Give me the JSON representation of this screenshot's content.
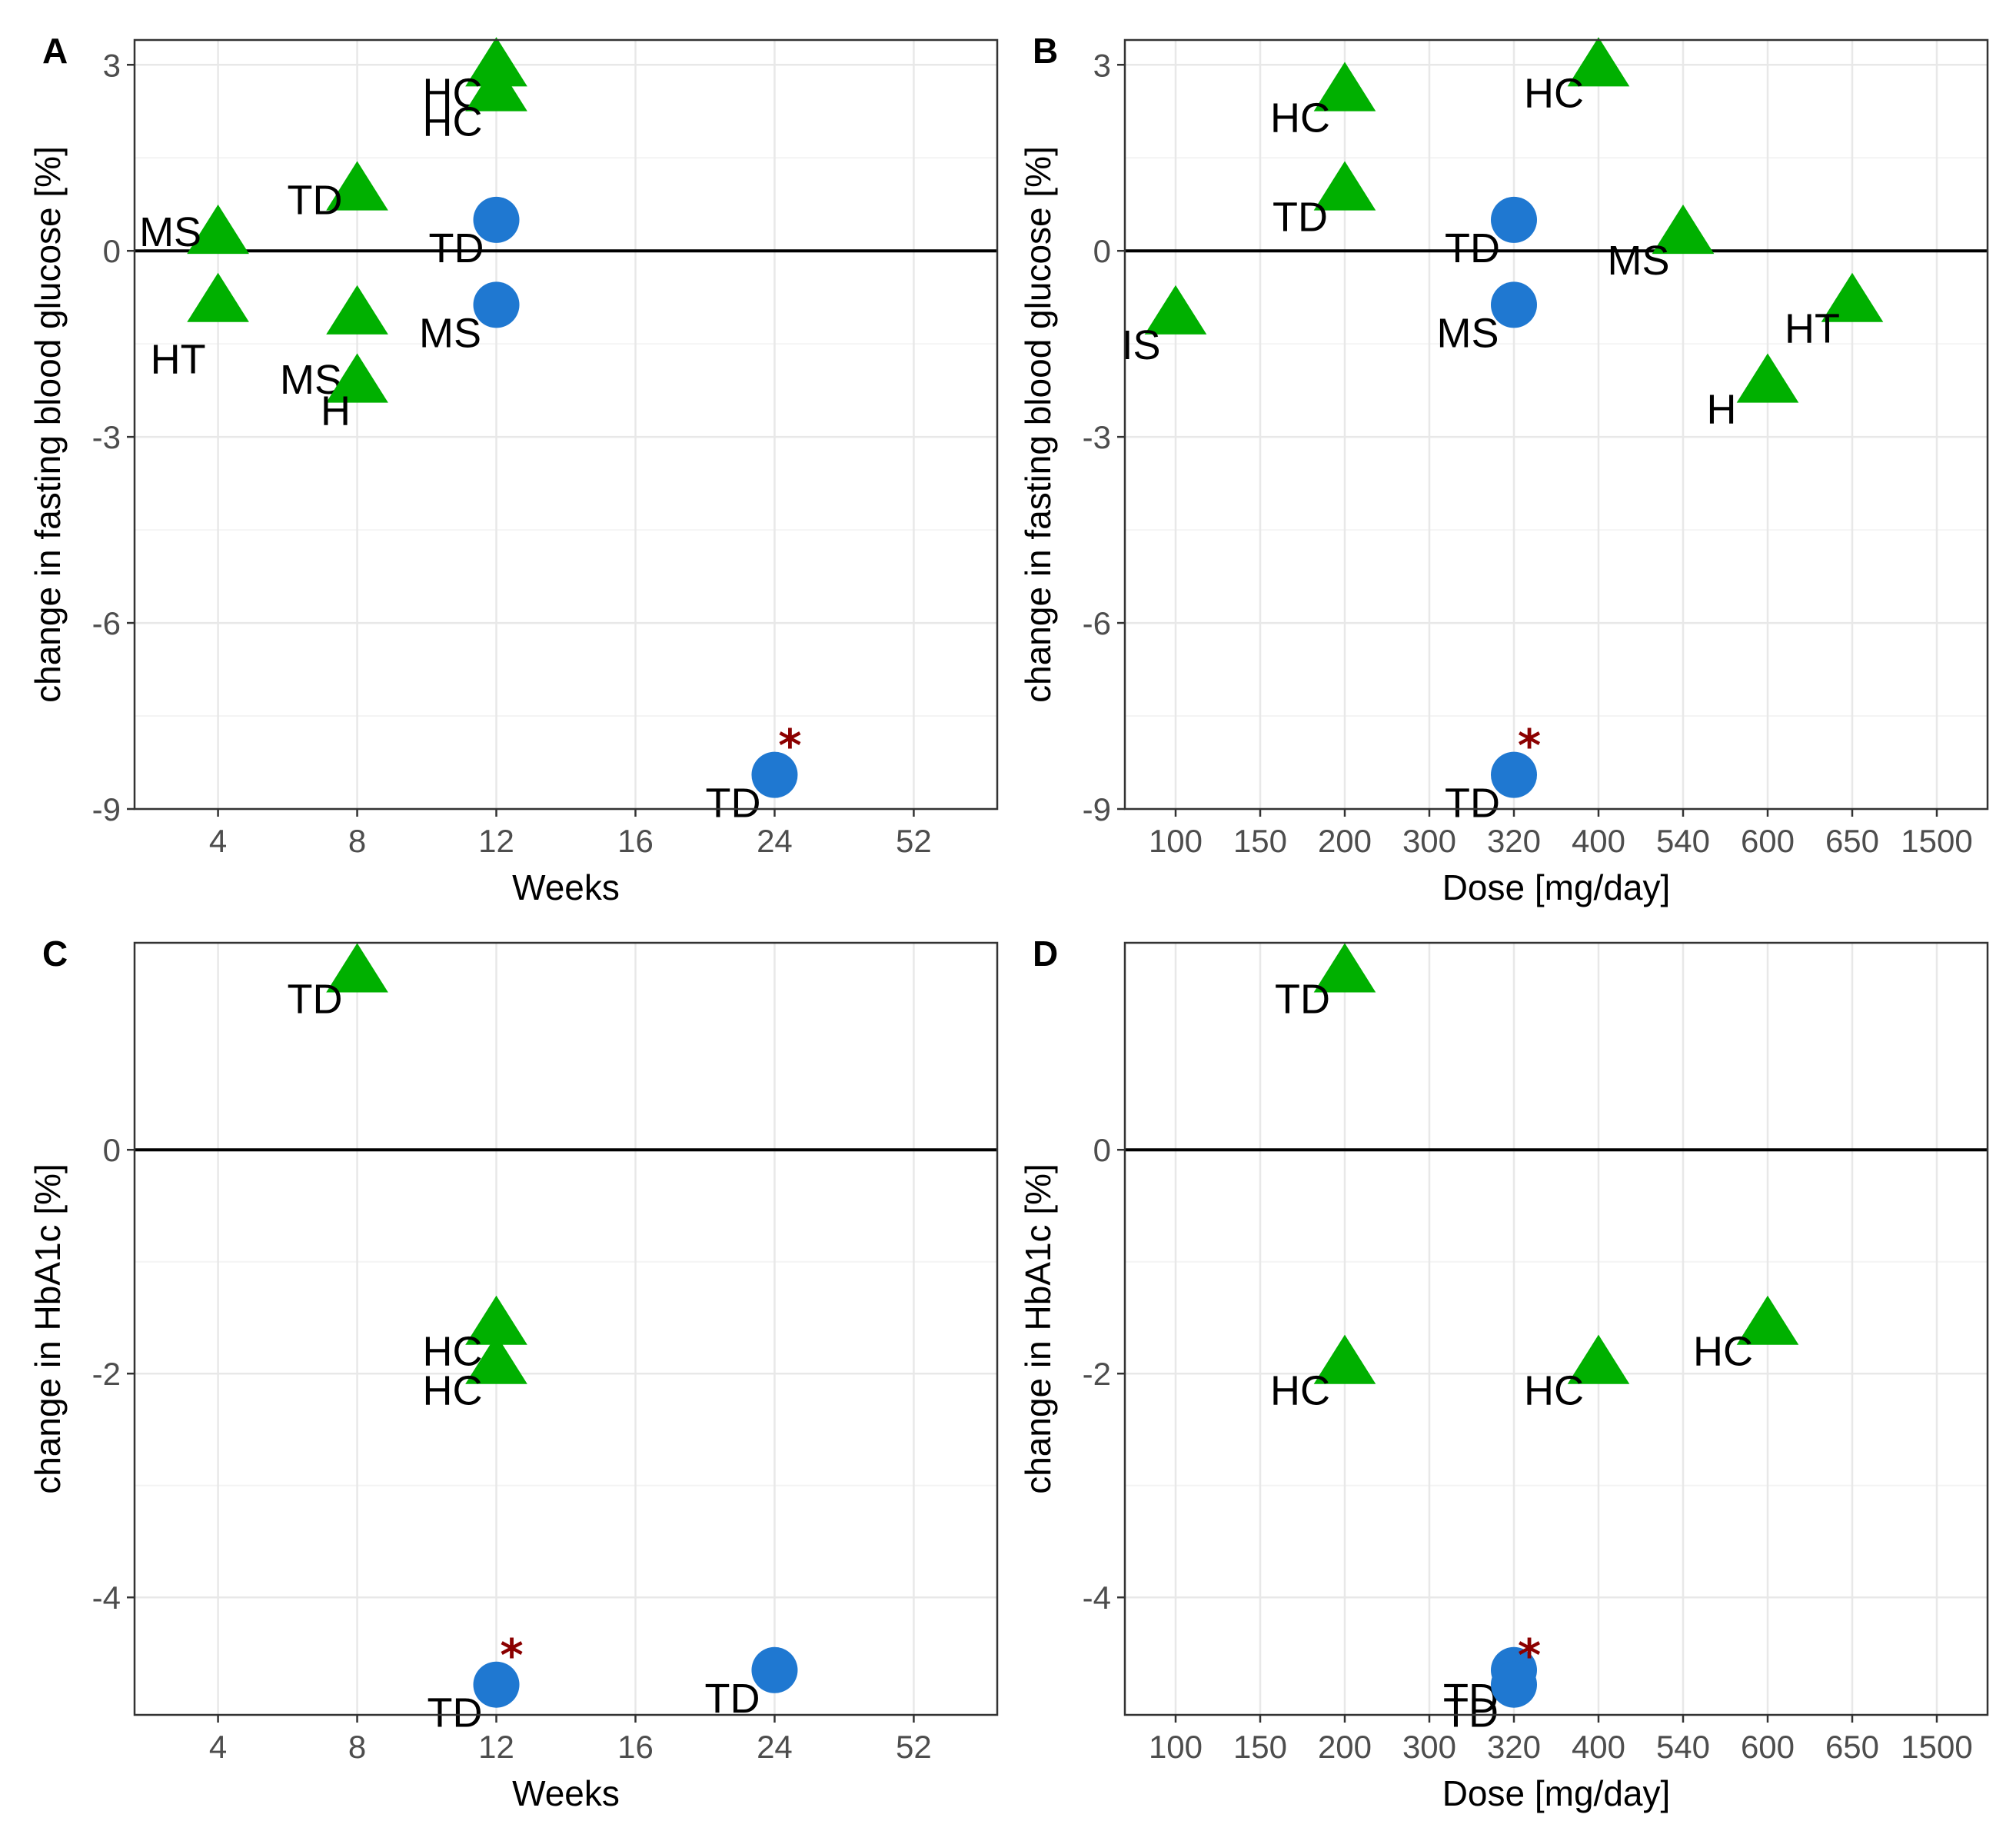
{
  "colors": {
    "triangle": "#00b000",
    "circle": "#1f78d1",
    "star": "#8b0000",
    "grid_major": "#e8e8e8",
    "grid_minor": "#f4f4f4",
    "frame": "#333333"
  },
  "chart_data": [
    {
      "panel": "A",
      "type": "scatter",
      "xlabel": "Weeks",
      "ylabel": "change in fasting blood glucose [%]",
      "x_categories": [
        "4",
        "8",
        "12",
        "16",
        "24",
        "52"
      ],
      "y_ticks": [
        3,
        0,
        -3,
        -6,
        -9
      ],
      "y_tick_labels": [
        "3",
        "0",
        "-3",
        "-6",
        "-9"
      ],
      "ylim": [
        -9,
        3.4
      ],
      "hline": 0,
      "points": [
        {
          "x": "4",
          "y": 0.3,
          "shape": "triangle",
          "label": "MS"
        },
        {
          "x": "4",
          "y": -0.8,
          "shape": "triangle",
          "label": "HT"
        },
        {
          "x": "8",
          "y": 1.0,
          "shape": "triangle",
          "label": "TD"
        },
        {
          "x": "8",
          "y": -1.0,
          "shape": "triangle",
          "label": "MS"
        },
        {
          "x": "8",
          "y": -2.1,
          "shape": "triangle",
          "label": "H"
        },
        {
          "x": "12",
          "y": 3.0,
          "shape": "triangle",
          "label": "HC"
        },
        {
          "x": "12",
          "y": 2.6,
          "shape": "triangle",
          "label": "HC"
        },
        {
          "x": "12",
          "y": 0.5,
          "shape": "circle",
          "label": "TD"
        },
        {
          "x": "12",
          "y": -0.87,
          "shape": "circle",
          "label": "MS"
        },
        {
          "x": "24",
          "y": -8.45,
          "shape": "circle",
          "label": "TD",
          "significant": true
        }
      ],
      "star": "*"
    },
    {
      "panel": "B",
      "type": "scatter",
      "xlabel": "Dose [mg/day]",
      "ylabel": "change in fasting blood glucose [%]",
      "x_categories": [
        "100",
        "150",
        "200",
        "300",
        "320",
        "400",
        "540",
        "600",
        "650",
        "1500"
      ],
      "y_ticks": [
        3,
        0,
        -3,
        -6,
        -9
      ],
      "y_tick_labels": [
        "3",
        "0",
        "-3",
        "-6",
        "-9"
      ],
      "ylim": [
        -9,
        3.4
      ],
      "hline": 0,
      "points": [
        {
          "x": "100",
          "y": -1.0,
          "shape": "triangle",
          "label": "IS"
        },
        {
          "x": "200",
          "y": 2.6,
          "shape": "triangle",
          "label": "HC"
        },
        {
          "x": "200",
          "y": 1.0,
          "shape": "triangle",
          "label": "TD"
        },
        {
          "x": "320",
          "y": 0.5,
          "shape": "circle",
          "label": "TD"
        },
        {
          "x": "320",
          "y": -0.87,
          "shape": "circle",
          "label": "MS"
        },
        {
          "x": "320",
          "y": -8.45,
          "shape": "circle",
          "label": "TD",
          "significant": true
        },
        {
          "x": "400",
          "y": 3.0,
          "shape": "triangle",
          "label": "HC"
        },
        {
          "x": "540",
          "y": 0.3,
          "shape": "triangle",
          "label": "MS"
        },
        {
          "x": "600",
          "y": -2.1,
          "shape": "triangle",
          "label": "H"
        },
        {
          "x": "650",
          "y": -0.8,
          "shape": "triangle",
          "label": "HT"
        }
      ],
      "star": "*"
    },
    {
      "panel": "C",
      "type": "scatter",
      "xlabel": "Weeks",
      "ylabel": "change in HbA1c [%]",
      "x_categories": [
        "4",
        "8",
        "12",
        "16",
        "24",
        "52"
      ],
      "y_ticks": [
        0,
        -2,
        -4
      ],
      "y_tick_labels": [
        "0",
        "-2",
        "-4"
      ],
      "ylim": [
        -5.05,
        1.85
      ],
      "hline": 0,
      "points": [
        {
          "x": "8",
          "y": 1.6,
          "shape": "triangle",
          "label": "TD"
        },
        {
          "x": "12",
          "y": -1.55,
          "shape": "triangle",
          "label": "HC"
        },
        {
          "x": "12",
          "y": -1.9,
          "shape": "triangle",
          "label": "HC"
        },
        {
          "x": "12",
          "y": -4.78,
          "shape": "circle",
          "label": "TD",
          "significant": true
        },
        {
          "x": "24",
          "y": -4.65,
          "shape": "circle",
          "label": "TD"
        }
      ],
      "star": "*"
    },
    {
      "panel": "D",
      "type": "scatter",
      "xlabel": "Dose [mg/day]",
      "ylabel": "change in HbA1c [%]",
      "x_categories": [
        "100",
        "150",
        "200",
        "300",
        "320",
        "400",
        "540",
        "600",
        "650",
        "1500"
      ],
      "y_ticks": [
        0,
        -2,
        -4
      ],
      "y_tick_labels": [
        "0",
        "-2",
        "-4"
      ],
      "ylim": [
        -5.05,
        1.85
      ],
      "hline": 0,
      "points": [
        {
          "x": "200",
          "y": 1.6,
          "shape": "triangle",
          "label": "TD"
        },
        {
          "x": "200",
          "y": -1.9,
          "shape": "triangle",
          "label": "HC"
        },
        {
          "x": "320",
          "y": -4.65,
          "shape": "circle",
          "label": "TD"
        },
        {
          "x": "320",
          "y": -4.78,
          "shape": "circle",
          "label": "TD",
          "significant": true
        },
        {
          "x": "400",
          "y": -1.9,
          "shape": "triangle",
          "label": "HC"
        },
        {
          "x": "600",
          "y": -1.55,
          "shape": "triangle",
          "label": "HC"
        }
      ],
      "star": "*"
    }
  ]
}
